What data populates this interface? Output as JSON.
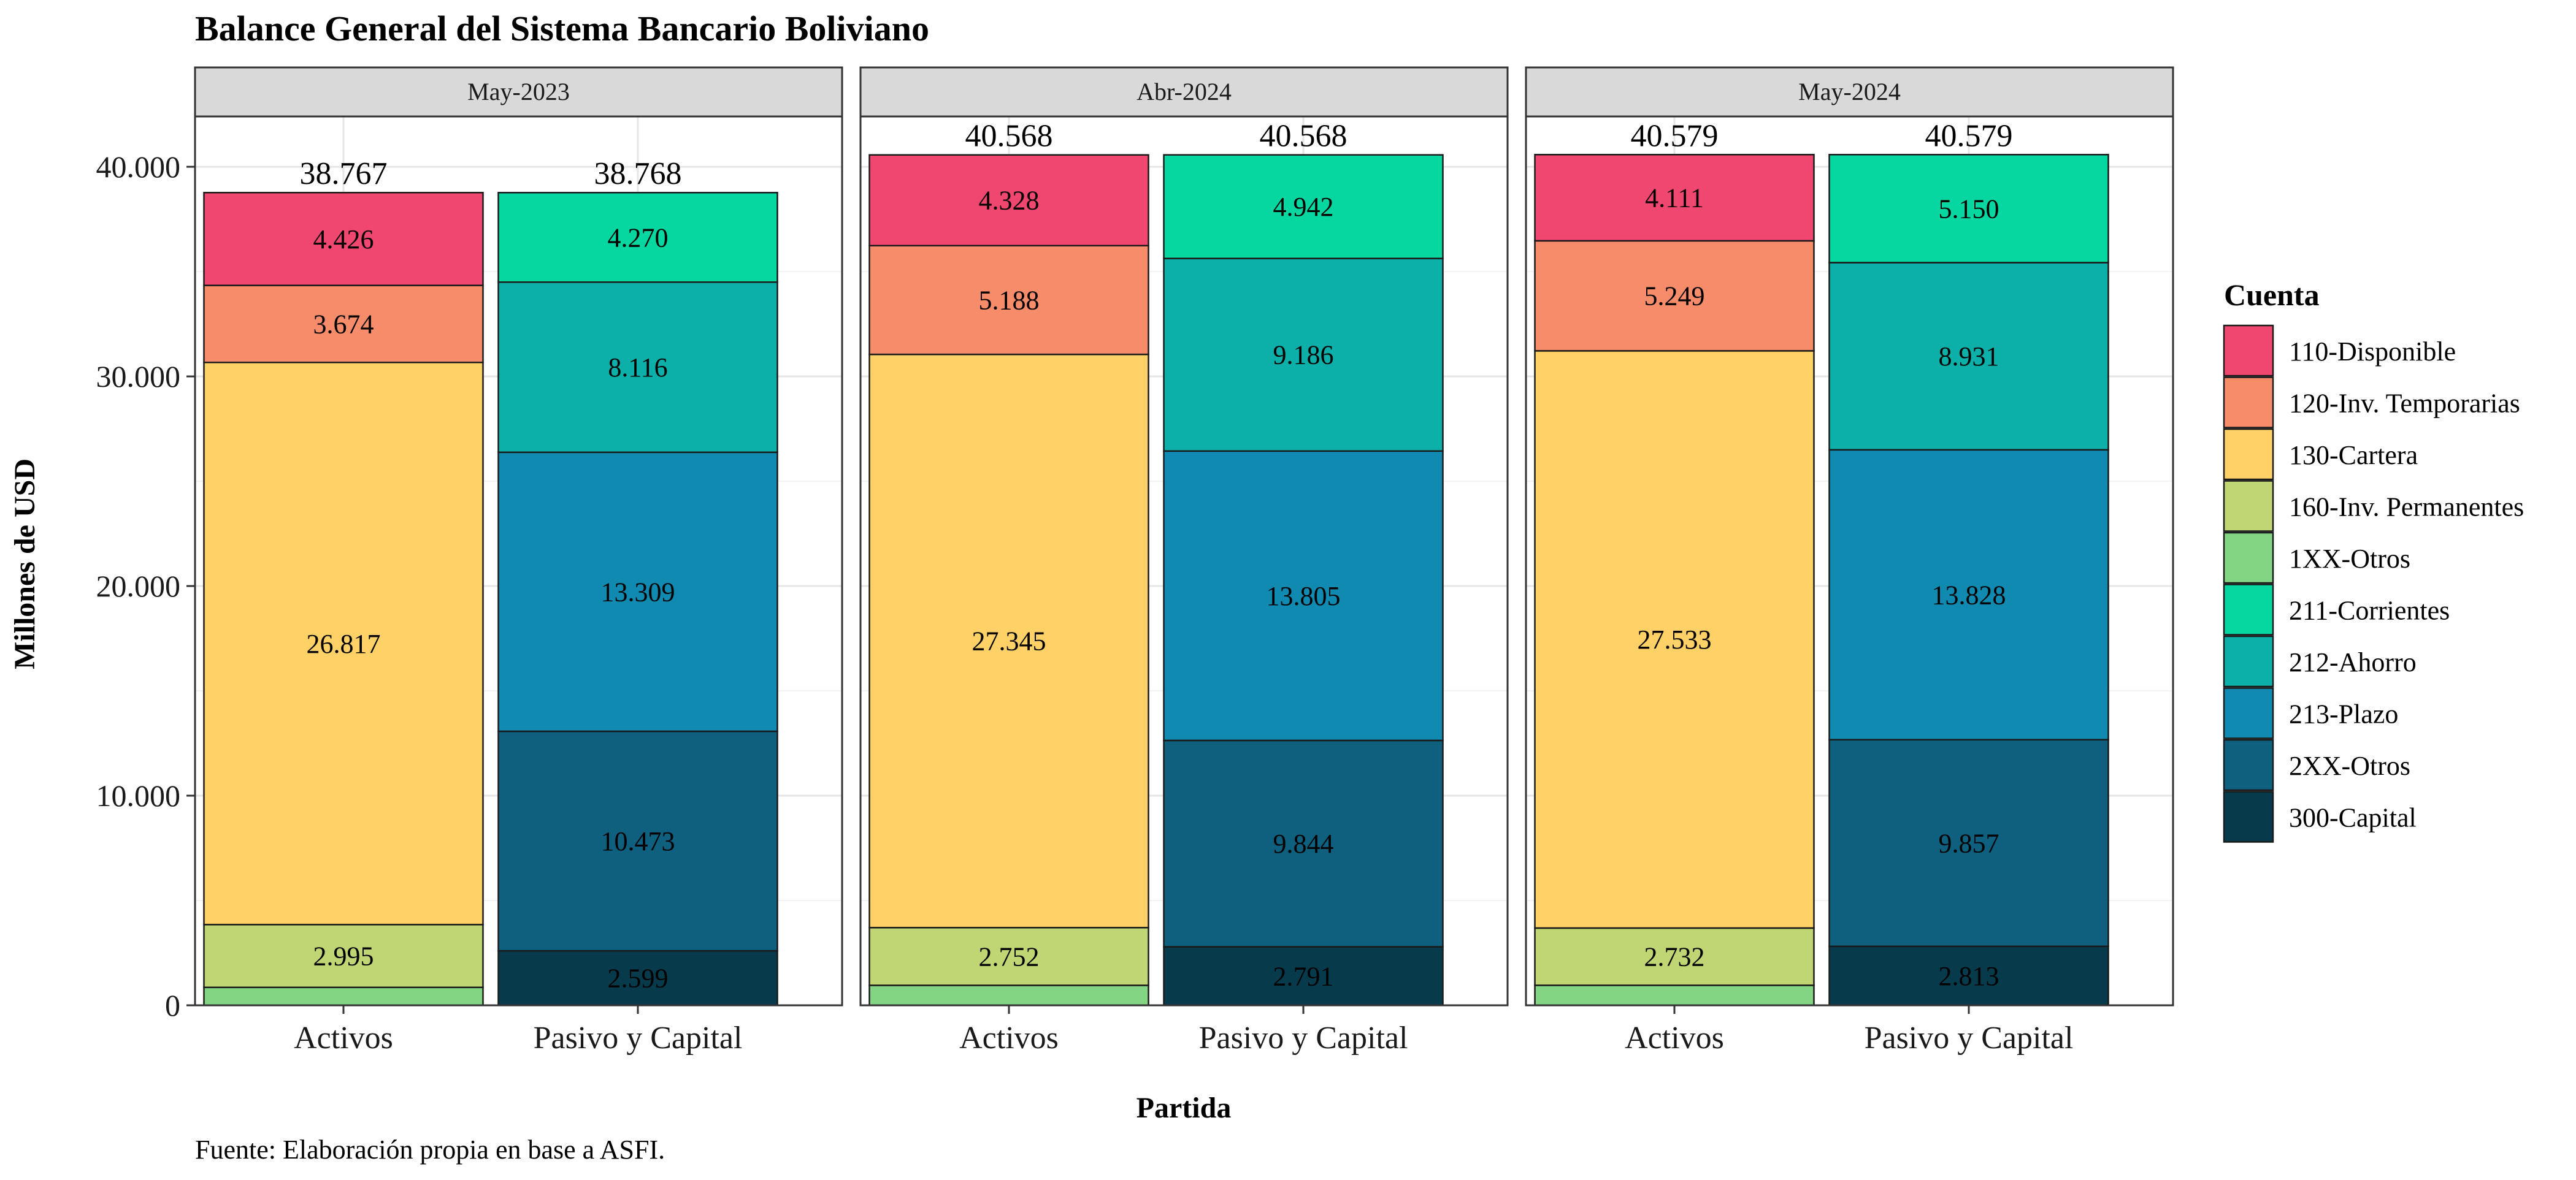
{
  "chart_data": {
    "type": "bar",
    "stacked": true,
    "title": "Balance General del Sistema Bancario Boliviano",
    "xlabel": "Partida",
    "ylabel": "Millones de USD",
    "caption": "Fuente: Elaboración propia en base a ASFI.",
    "ylim": [
      0,
      42400
    ],
    "yticks": [
      0,
      10000,
      20000,
      30000,
      40000
    ],
    "ytick_labels": [
      "0",
      "10.000",
      "20.000",
      "30.000",
      "40.000"
    ],
    "grid": true,
    "categories": [
      "Activos",
      "Pasivo y Capital"
    ],
    "legend": {
      "title": "Cuenta",
      "position": "right",
      "items": [
        {
          "label": "110-Disponible",
          "color": "#EF476F"
        },
        {
          "label": "120-Inv. Temporarias",
          "color": "#F78C6B"
        },
        {
          "label": "130-Cartera",
          "color": "#FFD166"
        },
        {
          "label": "160-Inv. Permanentes",
          "color": "#C0D674"
        },
        {
          "label": "1XX-Otros",
          "color": "#83D483"
        },
        {
          "label": "211-Corrientes",
          "color": "#06D6A0"
        },
        {
          "label": "212-Ahorro",
          "color": "#0CB0A9"
        },
        {
          "label": "213-Plazo",
          "color": "#118AB2"
        },
        {
          "label": "2XX-Otros",
          "color": "#0F5F7E"
        },
        {
          "label": "300-Capital",
          "color": "#073B4C"
        }
      ]
    },
    "panels": [
      {
        "period": "May-2023",
        "bars": [
          {
            "category": "Activos",
            "total": 38767,
            "total_label": "38.767",
            "segments": [
              {
                "account": "1XX-Otros",
                "value": 855,
                "label": ""
              },
              {
                "account": "160-Inv. Permanentes",
                "value": 2995,
                "label": "2.995"
              },
              {
                "account": "130-Cartera",
                "value": 26817,
                "label": "26.817"
              },
              {
                "account": "120-Inv. Temporarias",
                "value": 3674,
                "label": "3.674"
              },
              {
                "account": "110-Disponible",
                "value": 4426,
                "label": "4.426"
              }
            ]
          },
          {
            "category": "Pasivo y Capital",
            "total": 38768,
            "total_label": "38.768",
            "segments": [
              {
                "account": "300-Capital",
                "value": 2599,
                "label": "2.599"
              },
              {
                "account": "2XX-Otros",
                "value": 10473,
                "label": "10.473"
              },
              {
                "account": "213-Plazo",
                "value": 13309,
                "label": "13.309"
              },
              {
                "account": "212-Ahorro",
                "value": 8116,
                "label": "8.116"
              },
              {
                "account": "211-Corrientes",
                "value": 4270,
                "label": "4.270"
              }
            ]
          }
        ]
      },
      {
        "period": "Abr-2024",
        "bars": [
          {
            "category": "Activos",
            "total": 40568,
            "total_label": "40.568",
            "segments": [
              {
                "account": "1XX-Otros",
                "value": 953,
                "label": ""
              },
              {
                "account": "160-Inv. Permanentes",
                "value": 2752,
                "label": "2.752"
              },
              {
                "account": "130-Cartera",
                "value": 27345,
                "label": "27.345"
              },
              {
                "account": "120-Inv. Temporarias",
                "value": 5188,
                "label": "5.188"
              },
              {
                "account": "110-Disponible",
                "value": 4328,
                "label": "4.328"
              }
            ]
          },
          {
            "category": "Pasivo y Capital",
            "total": 40568,
            "total_label": "40.568",
            "segments": [
              {
                "account": "300-Capital",
                "value": 2791,
                "label": "2.791"
              },
              {
                "account": "2XX-Otros",
                "value": 9844,
                "label": "9.844"
              },
              {
                "account": "213-Plazo",
                "value": 13805,
                "label": "13.805"
              },
              {
                "account": "212-Ahorro",
                "value": 9186,
                "label": "9.186"
              },
              {
                "account": "211-Corrientes",
                "value": 4942,
                "label": "4.942"
              }
            ]
          }
        ]
      },
      {
        "period": "May-2024",
        "bars": [
          {
            "category": "Activos",
            "total": 40579,
            "total_label": "40.579",
            "segments": [
              {
                "account": "1XX-Otros",
                "value": 954,
                "label": ""
              },
              {
                "account": "160-Inv. Permanentes",
                "value": 2732,
                "label": "2.732"
              },
              {
                "account": "130-Cartera",
                "value": 27533,
                "label": "27.533"
              },
              {
                "account": "120-Inv. Temporarias",
                "value": 5249,
                "label": "5.249"
              },
              {
                "account": "110-Disponible",
                "value": 4111,
                "label": "4.111"
              }
            ]
          },
          {
            "category": "Pasivo y Capital",
            "total": 40579,
            "total_label": "40.579",
            "segments": [
              {
                "account": "300-Capital",
                "value": 2813,
                "label": "2.813"
              },
              {
                "account": "2XX-Otros",
                "value": 9857,
                "label": "9.857"
              },
              {
                "account": "213-Plazo",
                "value": 13828,
                "label": "13.828"
              },
              {
                "account": "212-Ahorro",
                "value": 8931,
                "label": "8.931"
              },
              {
                "account": "211-Corrientes",
                "value": 5150,
                "label": "5.150"
              }
            ]
          }
        ]
      }
    ]
  }
}
